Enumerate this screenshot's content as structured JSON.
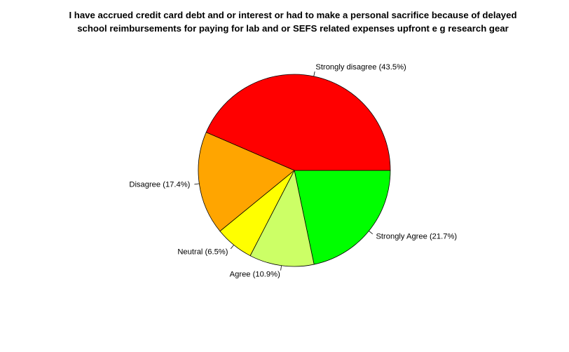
{
  "chart_data": {
    "type": "pie",
    "title_lines": [
      "I have accrued credit card debt and or interest or had to make a personal sacrifice because of delayed",
      "school reimbursements for paying for lab and or SEFS related expenses upfront  e g  research gear"
    ],
    "slices": [
      {
        "name": "Strongly Agree",
        "value": 21.7,
        "label": "Strongly Agree (21.7%)",
        "color": "#00FF00"
      },
      {
        "name": "Agree",
        "value": 10.9,
        "label": "Agree (10.9%)",
        "color": "#CCFF66"
      },
      {
        "name": "Neutral",
        "value": 6.5,
        "label": "Neutral (6.5%)",
        "color": "#FFFF00"
      },
      {
        "name": "Disagree",
        "value": 17.4,
        "label": "Disagree (17.4%)",
        "color": "#FFA500"
      },
      {
        "name": "Strongly disagree",
        "value": 43.5,
        "label": "Strongly disagree (43.5%)",
        "color": "#FF0000"
      }
    ],
    "start_angle_deg": 0,
    "direction": "clockwise"
  }
}
